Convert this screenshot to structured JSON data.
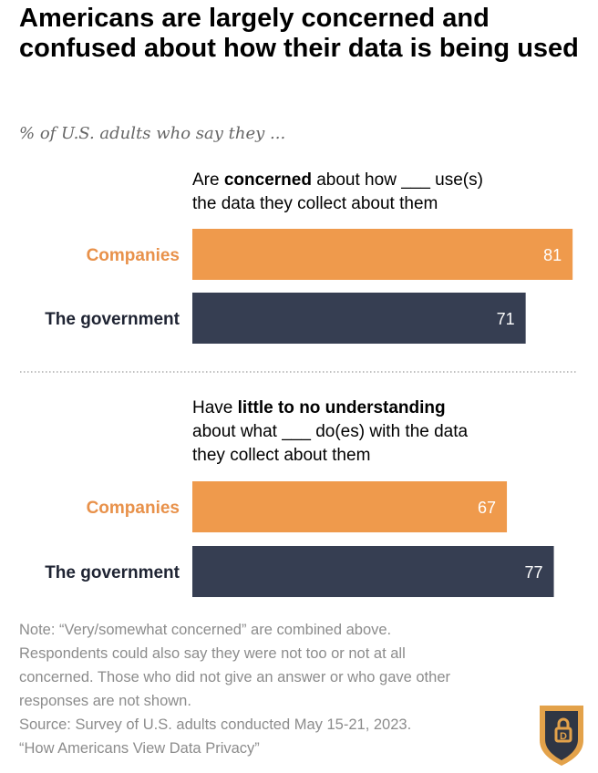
{
  "title": "Americans are largely concerned and confused about how their data is being used",
  "subtitle": "% of U.S. adults who say they ...",
  "colors": {
    "companies": "#ef9a4c",
    "government": "#363e52",
    "companies_label": "#e8914a",
    "government_label": "#1f2433"
  },
  "chart_data": [
    {
      "type": "bar",
      "heading": {
        "pre": "Are ",
        "bold": "concerned",
        "post": " about how ___ use(s)",
        "line2": "the data they collect about them"
      },
      "categories": [
        "Companies",
        "The government"
      ],
      "values": [
        81,
        71
      ],
      "xlim": [
        0,
        100
      ]
    },
    {
      "type": "bar",
      "heading": {
        "pre": "Have ",
        "bold": "little to no understanding",
        "line2": "about what ___ do(es) with the data",
        "line3": "they collect about them"
      },
      "categories": [
        "Companies",
        "The government"
      ],
      "values": [
        67,
        77
      ],
      "xlim": [
        0,
        100
      ]
    }
  ],
  "note": {
    "line1": "Note: “Very/somewhat concerned” are combined above.",
    "line2": "Respondents could also say they were not too or not at all",
    "line3": "concerned. Those who did not give an answer or who gave other",
    "line4": "responses are not shown.",
    "source": "Source: Survey of U.S. adults conducted May 15-21, 2023.",
    "report": "“How Americans View Data Privacy”"
  },
  "logo": {
    "icon": "lock-shield-icon",
    "text": "D"
  }
}
